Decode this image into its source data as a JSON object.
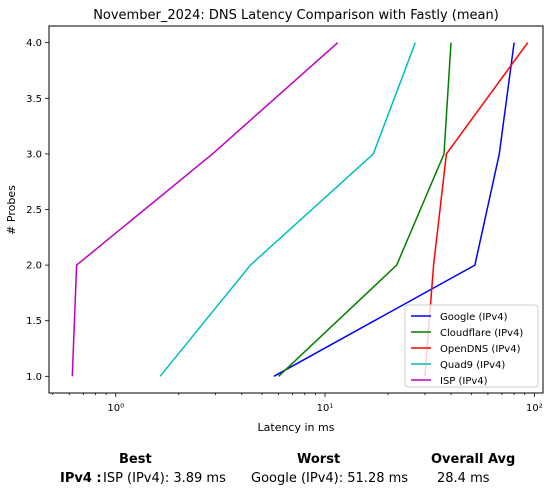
{
  "chart_data": {
    "type": "line",
    "title": "November_2024: DNS Latency Comparison with Fastly (mean)",
    "xlabel": "Latency in ms",
    "ylabel": "# Probes",
    "xscale": "log",
    "xlim": [
      0.48,
      110
    ],
    "ylim": [
      0.85,
      4.15
    ],
    "xticks": [
      1,
      10,
      100
    ],
    "xtick_labels": [
      "10⁰",
      "10¹",
      "10²"
    ],
    "yticks": [
      1.0,
      1.5,
      2.0,
      2.5,
      3.0,
      3.5,
      4.0
    ],
    "ytick_labels": [
      "1.0",
      "1.5",
      "2.0",
      "2.5",
      "3.0",
      "3.5",
      "4.0"
    ],
    "grid": false,
    "legend_position": "lower-right",
    "series": [
      {
        "name": "Google (IPv4)",
        "color": "#0000ff",
        "x": [
          5.7,
          52,
          68,
          80
        ],
        "y": [
          1,
          2,
          3,
          4
        ]
      },
      {
        "name": "Cloudflare (IPv4)",
        "color": "#008000",
        "x": [
          6.0,
          22,
          37,
          40
        ],
        "y": [
          1,
          2,
          3,
          4
        ]
      },
      {
        "name": "OpenDNS (IPv4)",
        "color": "#ff0000",
        "x": [
          30,
          33,
          38,
          93
        ],
        "y": [
          1,
          2,
          3,
          4
        ]
      },
      {
        "name": "Quad9 (IPv4)",
        "color": "#00bfbf",
        "x": [
          1.63,
          4.4,
          17,
          27
        ],
        "y": [
          1,
          2,
          3,
          4
        ]
      },
      {
        "name": "ISP (IPv4)",
        "color": "#bf00bf",
        "x": [
          0.62,
          0.65,
          2.9,
          11.5
        ],
        "y": [
          1,
          2,
          3,
          4
        ]
      }
    ]
  },
  "summary": {
    "headers": {
      "best": "Best",
      "worst": "Worst",
      "avg": "Overall Avg"
    },
    "row_label": "IPv4 :",
    "best": "ISP (IPv4): 3.89 ms",
    "worst": "Google (IPv4): 51.28 ms",
    "avg": "28.4 ms"
  }
}
